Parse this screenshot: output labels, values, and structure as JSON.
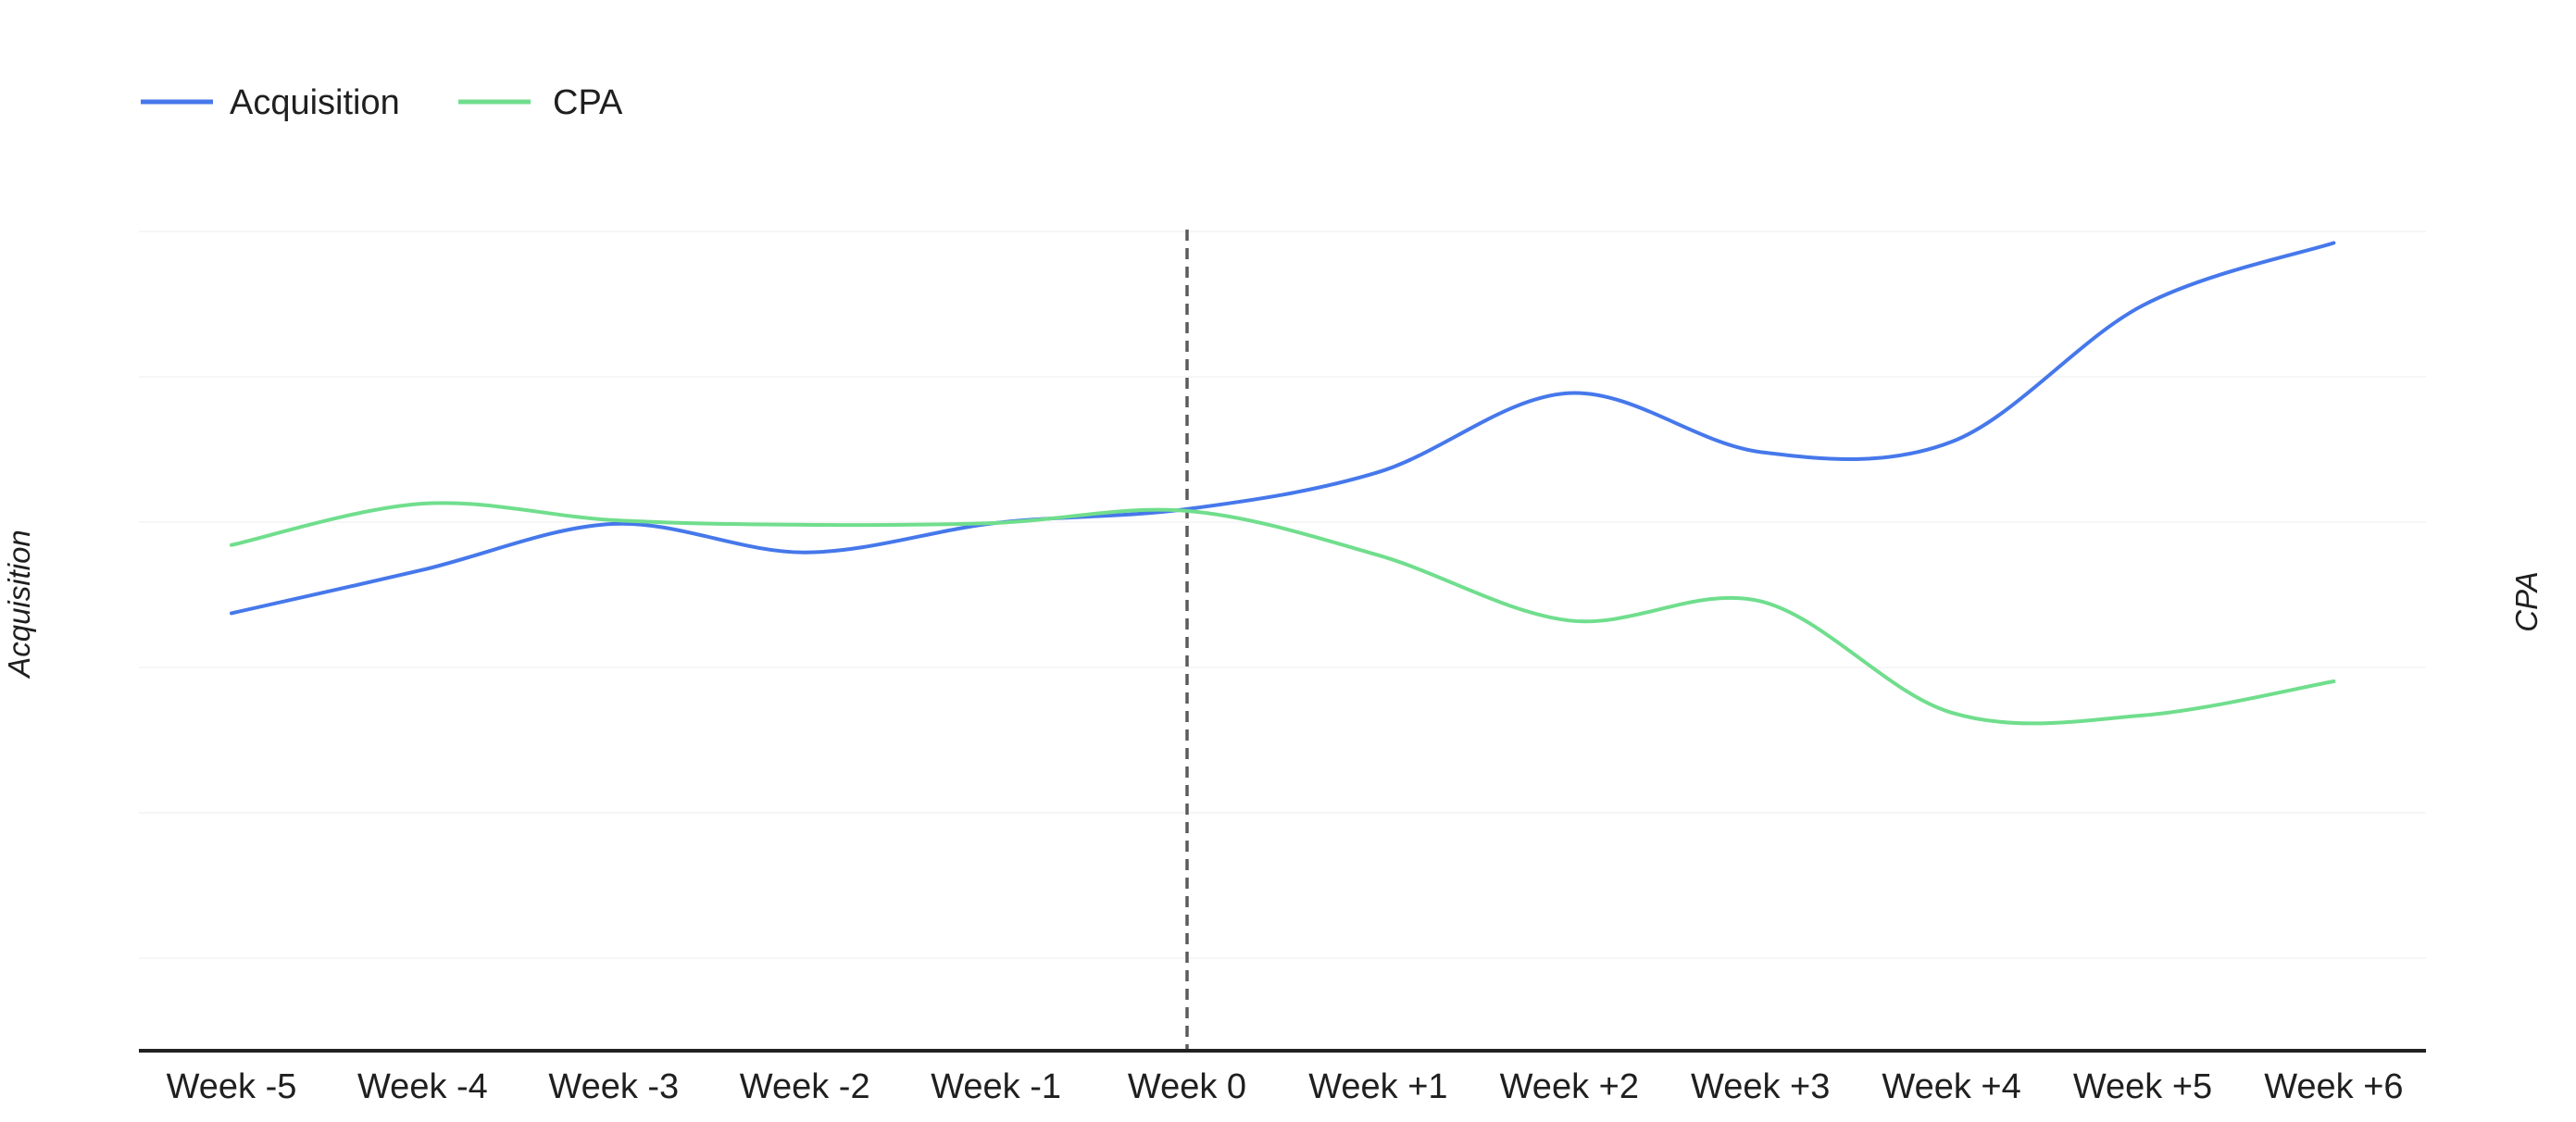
{
  "page": {
    "background_color": "#ffffff",
    "text_color": "#1f1f1f"
  },
  "chart_data": {
    "type": "line",
    "title": "",
    "categories": [
      "Week -5",
      "Week -4",
      "Week -3",
      "Week -2",
      "Week -1",
      "Week 0",
      "Week +1",
      "Week +2",
      "Week +3",
      "Week +4",
      "Week +5",
      "Week +6"
    ],
    "series": [
      {
        "name": "Acquisition",
        "axis": "left",
        "color": "#4678EB",
        "values": [
          47.5,
          52.2,
          57.2,
          54.1,
          57.3,
          58.8,
          62.8,
          71.4,
          65.0,
          66.1,
          80.9,
          87.7
        ]
      },
      {
        "name": "CPA",
        "axis": "right",
        "color": "#70DE8D",
        "values": [
          54.9,
          59.4,
          57.6,
          57.1,
          57.3,
          58.6,
          53.8,
          46.7,
          48.8,
          36.7,
          36.4,
          40.1
        ]
      }
    ],
    "y_value_units": "relative scale (no y-axis tick values shown in chart)",
    "left_axis_label": "Acquisition",
    "right_axis_label": "CPA",
    "legend_position": "top-left",
    "event_line": {
      "category": "Week 0",
      "style": "dashed",
      "color": "#5b5b5b"
    },
    "x_axis_line_color": "#212121",
    "grid": "very faint horizontal gridlines, no vertical gridlines"
  }
}
